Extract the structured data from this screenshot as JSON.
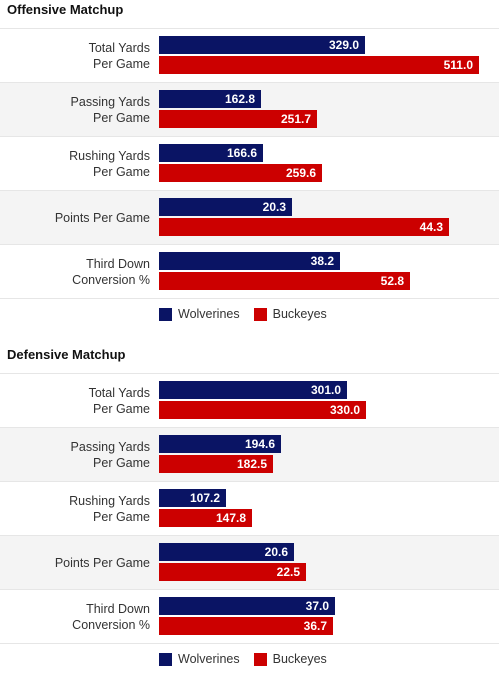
{
  "colors": {
    "wolverines": "#0a1464",
    "buckeyes": "#cc0000"
  },
  "chart_data": [
    {
      "type": "bar",
      "title": "Offensive Matchup",
      "categories": [
        "Total Yards\nPer Game",
        "Passing Yards\nPer Game",
        "Rushing Yards\nPer Game",
        "Points Per Game",
        "Third Down\nConversion %"
      ],
      "series": [
        {
          "name": "Wolverines",
          "values": [
            "329.0",
            "162.8",
            "166.6",
            "20.3",
            "38.2"
          ]
        },
        {
          "name": "Buckeyes",
          "values": [
            "511.0",
            "251.7",
            "259.6",
            "44.3",
            "52.8"
          ]
        }
      ]
    },
    {
      "type": "bar",
      "title": "Defensive Matchup",
      "categories": [
        "Total Yards\nPer Game",
        "Passing Yards\nPer Game",
        "Rushing Yards\nPer Game",
        "Points Per Game",
        "Third Down\nConversion %"
      ],
      "series": [
        {
          "name": "Wolverines",
          "values": [
            "301.0",
            "194.6",
            "107.2",
            "20.6",
            "37.0"
          ]
        },
        {
          "name": "Buckeyes",
          "values": [
            "330.0",
            "182.5",
            "147.8",
            "22.5",
            "36.7"
          ]
        }
      ]
    }
  ]
}
